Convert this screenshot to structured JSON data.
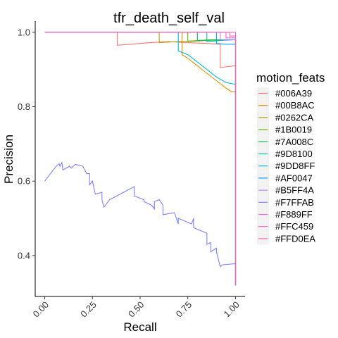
{
  "chart_data": {
    "type": "line",
    "title": "tfr_death_self_val",
    "xlabel": "Recall",
    "ylabel": "Precision",
    "xlim": [
      -0.05,
      1.05
    ],
    "ylim": [
      0.29,
      1.03
    ],
    "x_ticks": [
      0.0,
      0.25,
      0.5,
      0.75,
      1.0
    ],
    "x_tick_labels": [
      "0.00",
      "0.25",
      "0.50",
      "0.75",
      "1.00"
    ],
    "y_ticks": [
      0.4,
      0.6,
      0.8,
      1.0
    ],
    "y_tick_labels": [
      "0.4",
      "0.6",
      "0.8",
      "1.0"
    ],
    "grid": false,
    "legend": {
      "title": "motion_feats",
      "placement": "right"
    },
    "series": [
      {
        "name": "#006A39",
        "color": "#F8766D",
        "points": [
          [
            0,
            1.0
          ],
          [
            0.38,
            1.0
          ],
          [
            0.38,
            0.965
          ],
          [
            0.45,
            0.968
          ],
          [
            0.55,
            0.972
          ],
          [
            0.65,
            0.975
          ],
          [
            0.75,
            0.972
          ],
          [
            0.85,
            0.97
          ],
          [
            0.92,
            0.968
          ],
          [
            0.92,
            0.905
          ],
          [
            0.96,
            0.908
          ],
          [
            1.0,
            0.91
          ],
          [
            1.0,
            0.32
          ]
        ]
      },
      {
        "name": "#00B8AC",
        "color": "#DB8E00",
        "points": [
          [
            0,
            1.0
          ],
          [
            0.72,
            1.0
          ],
          [
            0.72,
            0.94
          ],
          [
            0.75,
            0.93
          ],
          [
            0.8,
            0.91
          ],
          [
            0.85,
            0.89
          ],
          [
            0.9,
            0.87
          ],
          [
            0.95,
            0.85
          ],
          [
            0.98,
            0.84
          ],
          [
            1.0,
            0.84
          ],
          [
            1.0,
            0.32
          ]
        ]
      },
      {
        "name": "#0262CA",
        "color": "#AEA200",
        "points": [
          [
            0,
            1.0
          ],
          [
            0.6,
            1.0
          ],
          [
            0.6,
            0.972
          ],
          [
            0.7,
            0.975
          ],
          [
            0.8,
            0.978
          ],
          [
            0.88,
            0.98
          ],
          [
            0.95,
            0.98
          ],
          [
            1.0,
            0.98
          ],
          [
            1.0,
            0.32
          ]
        ]
      },
      {
        "name": "#1B0019",
        "color": "#64B200",
        "points": [
          [
            0,
            1.0
          ],
          [
            0.75,
            1.0
          ],
          [
            0.75,
            0.975
          ],
          [
            0.85,
            0.978
          ],
          [
            0.95,
            0.98
          ],
          [
            1.0,
            0.98
          ],
          [
            1.0,
            0.32
          ]
        ]
      },
      {
        "name": "#7A008C",
        "color": "#00BD5C",
        "points": [
          [
            0,
            1.0
          ],
          [
            0.8,
            1.0
          ],
          [
            0.8,
            0.978
          ],
          [
            0.9,
            0.98
          ],
          [
            1.0,
            0.98
          ],
          [
            1.0,
            0.32
          ]
        ]
      },
      {
        "name": "#9D8100",
        "color": "#00C1A7",
        "points": [
          [
            0,
            1.0
          ],
          [
            0.85,
            1.0
          ],
          [
            0.85,
            0.975
          ],
          [
            0.92,
            0.978
          ],
          [
            1.0,
            0.98
          ],
          [
            1.0,
            0.32
          ]
        ]
      },
      {
        "name": "#9DD8FF",
        "color": "#00BADE",
        "points": [
          [
            0,
            1.0
          ],
          [
            0.7,
            1.0
          ],
          [
            0.7,
            0.95
          ],
          [
            0.75,
            0.94
          ],
          [
            0.8,
            0.92
          ],
          [
            0.85,
            0.9
          ],
          [
            0.9,
            0.88
          ],
          [
            0.95,
            0.865
          ],
          [
            1.0,
            0.86
          ],
          [
            1.0,
            0.32
          ]
        ]
      },
      {
        "name": "#AF0047",
        "color": "#00A6FF",
        "points": [
          [
            0,
            1.0
          ],
          [
            0.9,
            1.0
          ],
          [
            0.9,
            0.97
          ],
          [
            0.95,
            0.968
          ],
          [
            1.0,
            0.968
          ],
          [
            1.0,
            0.32
          ]
        ]
      },
      {
        "name": "#B5FF4A",
        "color": "#B385FF",
        "points": [
          [
            0,
            1.0
          ],
          [
            0.92,
            1.0
          ],
          [
            0.92,
            0.98
          ],
          [
            1.0,
            0.98
          ],
          [
            1.0,
            0.32
          ]
        ]
      },
      {
        "name": "#F7FFAB",
        "color": "#7F80FF",
        "points": [
          [
            0,
            0.6
          ],
          [
            0.03,
            0.62
          ],
          [
            0.06,
            0.64
          ],
          [
            0.075,
            0.647
          ],
          [
            0.08,
            0.64
          ],
          [
            0.09,
            0.65
          ],
          [
            0.095,
            0.63
          ],
          [
            0.13,
            0.64
          ],
          [
            0.14,
            0.635
          ],
          [
            0.16,
            0.645
          ],
          [
            0.2,
            0.64
          ],
          [
            0.22,
            0.62
          ],
          [
            0.235,
            0.62
          ],
          [
            0.235,
            0.59
          ],
          [
            0.25,
            0.6
          ],
          [
            0.265,
            0.565
          ],
          [
            0.3,
            0.57
          ],
          [
            0.3,
            0.55
          ],
          [
            0.31,
            0.53
          ],
          [
            0.34,
            0.55
          ],
          [
            0.45,
            0.58
          ],
          [
            0.47,
            0.585
          ],
          [
            0.47,
            0.56
          ],
          [
            0.52,
            0.55
          ],
          [
            0.52,
            0.545
          ],
          [
            0.56,
            0.535
          ],
          [
            0.575,
            0.525
          ],
          [
            0.575,
            0.545
          ],
          [
            0.6,
            0.55
          ],
          [
            0.62,
            0.535
          ],
          [
            0.62,
            0.51
          ],
          [
            0.68,
            0.515
          ],
          [
            0.7,
            0.485
          ],
          [
            0.7,
            0.5
          ],
          [
            0.77,
            0.485
          ],
          [
            0.78,
            0.5
          ],
          [
            0.78,
            0.475
          ],
          [
            0.85,
            0.46
          ],
          [
            0.85,
            0.43
          ],
          [
            0.87,
            0.435
          ],
          [
            0.87,
            0.41
          ],
          [
            0.9,
            0.42
          ],
          [
            0.9,
            0.41
          ],
          [
            0.92,
            0.37
          ],
          [
            0.93,
            0.375
          ],
          [
            1.0,
            0.378
          ],
          [
            1.0,
            0.32
          ]
        ]
      },
      {
        "name": "#F889FF",
        "color": "#EF67EB",
        "points": [
          [
            0,
            1.0
          ],
          [
            0.95,
            1.0
          ],
          [
            0.95,
            0.985
          ],
          [
            1.0,
            0.985
          ],
          [
            1.0,
            0.32
          ]
        ]
      },
      {
        "name": "#FFC459",
        "color": "#FF61C3",
        "points": [
          [
            0,
            1.0
          ],
          [
            0.97,
            1.0
          ],
          [
            0.97,
            0.99
          ],
          [
            1.0,
            0.99
          ],
          [
            1.0,
            0.32
          ]
        ]
      },
      {
        "name": "#FFD0EA",
        "color": "#FF63B6",
        "points": [
          [
            0,
            1.0
          ],
          [
            1.0,
            1.0
          ],
          [
            1.0,
            0.32
          ]
        ]
      }
    ]
  }
}
